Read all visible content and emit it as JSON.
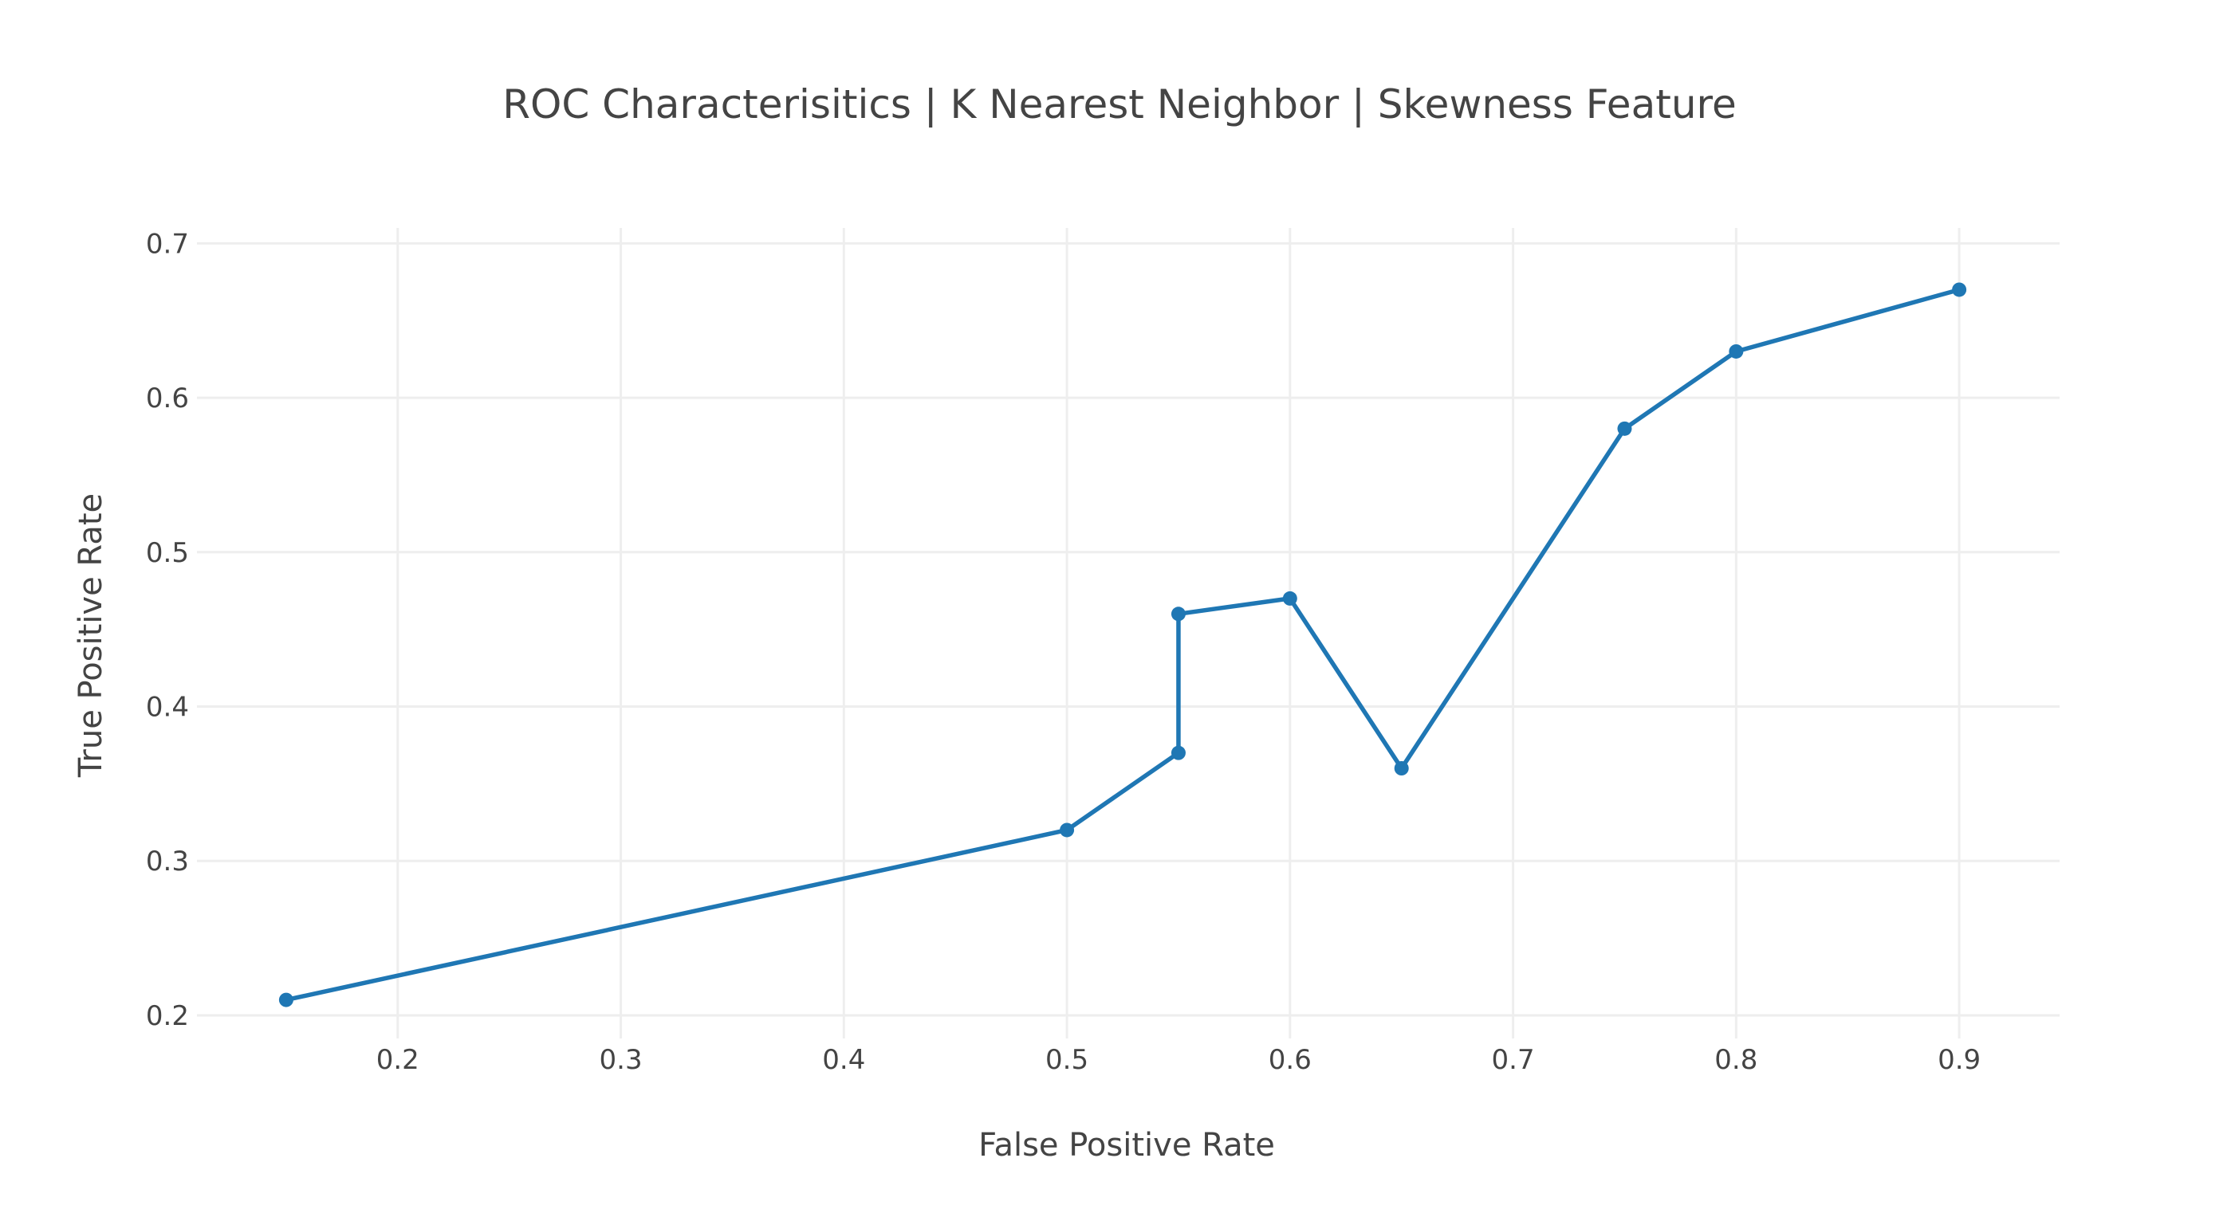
{
  "chart_data": {
    "type": "line",
    "title": "ROC Characterisitics | K Nearest Neighbor | Skewness Feature",
    "xlabel": "False Positive Rate",
    "ylabel": "True Positive Rate",
    "x_ticks": [
      0.2,
      0.3,
      0.4,
      0.5,
      0.6,
      0.7,
      0.8,
      0.9
    ],
    "y_ticks": [
      0.2,
      0.3,
      0.4,
      0.5,
      0.6,
      0.7
    ],
    "x_tick_labels": [
      "0.2",
      "0.3",
      "0.4",
      "0.5",
      "0.6",
      "0.7",
      "0.8",
      "0.9"
    ],
    "y_tick_labels": [
      "0.2",
      "0.3",
      "0.4",
      "0.5",
      "0.6",
      "0.7"
    ],
    "xlim": [
      0.11,
      0.945
    ],
    "ylim": [
      0.185,
      0.71
    ],
    "grid": true,
    "legend": "none",
    "color": "#1f77b4",
    "series": [
      {
        "x": [
          0.15,
          0.5,
          0.55,
          0.55,
          0.6,
          0.65,
          0.75,
          0.8,
          0.9
        ],
        "y": [
          0.21,
          0.32,
          0.37,
          0.46,
          0.47,
          0.36,
          0.58,
          0.63,
          0.67
        ]
      }
    ]
  }
}
